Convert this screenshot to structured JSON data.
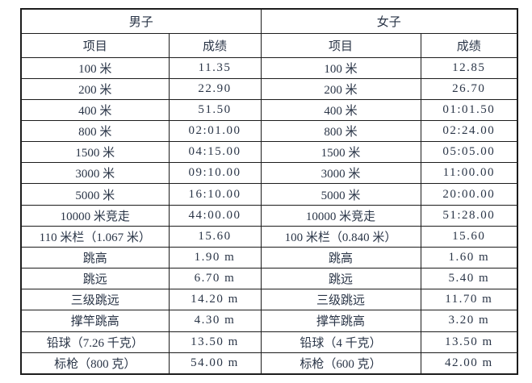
{
  "table": {
    "border_color": "#1c1c1c",
    "text_color": "#2a3547",
    "groups": {
      "men": "男子",
      "women": "女子"
    },
    "columns": {
      "event": "项目",
      "result": "成绩"
    },
    "rows": [
      {
        "men_event": "100 米",
        "men_result": "11.35",
        "women_event": "100 米",
        "women_result": "12.85"
      },
      {
        "men_event": "200 米",
        "men_result": "22.90",
        "women_event": "200 米",
        "women_result": "26.70"
      },
      {
        "men_event": "400 米",
        "men_result": "51.50",
        "women_event": "400 米",
        "women_result": "01:01.50"
      },
      {
        "men_event": "800 米",
        "men_result": "02:01.00",
        "women_event": "800 米",
        "women_result": "02:24.00"
      },
      {
        "men_event": "1500 米",
        "men_result": "04:15.00",
        "women_event": "1500 米",
        "women_result": "05:05.00"
      },
      {
        "men_event": "3000 米",
        "men_result": "09:10.00",
        "women_event": "3000 米",
        "women_result": "11:00.00"
      },
      {
        "men_event": "5000 米",
        "men_result": "16:10.00",
        "women_event": "5000 米",
        "women_result": "20:00.00"
      },
      {
        "men_event": "10000 米竞走",
        "men_result": "44:00.00",
        "women_event": "10000 米竞走",
        "women_result": "51:28.00"
      },
      {
        "men_event": "110 米栏（1.067 米）",
        "men_result": "15.60",
        "women_event": "100 米栏（0.840 米）",
        "women_result": "15.60"
      },
      {
        "men_event": "跳高",
        "men_result": "1.90 m",
        "women_event": "跳高",
        "women_result": "1.60 m"
      },
      {
        "men_event": "跳远",
        "men_result": "6.70 m",
        "women_event": "跳远",
        "women_result": "5.40 m"
      },
      {
        "men_event": "三级跳远",
        "men_result": "14.20 m",
        "women_event": "三级跳远",
        "women_result": "11.70 m"
      },
      {
        "men_event": "撑竿跳高",
        "men_result": "4.30 m",
        "women_event": "撑竿跳高",
        "women_result": "3.20 m"
      },
      {
        "men_event": "铅球（7.26 千克）",
        "men_result": "13.50 m",
        "women_event": "铅球（4 千克）",
        "women_result": "13.50 m"
      },
      {
        "men_event": "标枪（800 克）",
        "men_result": "54.00 m",
        "women_event": "标枪（600 克）",
        "women_result": "42.00 m"
      }
    ]
  }
}
